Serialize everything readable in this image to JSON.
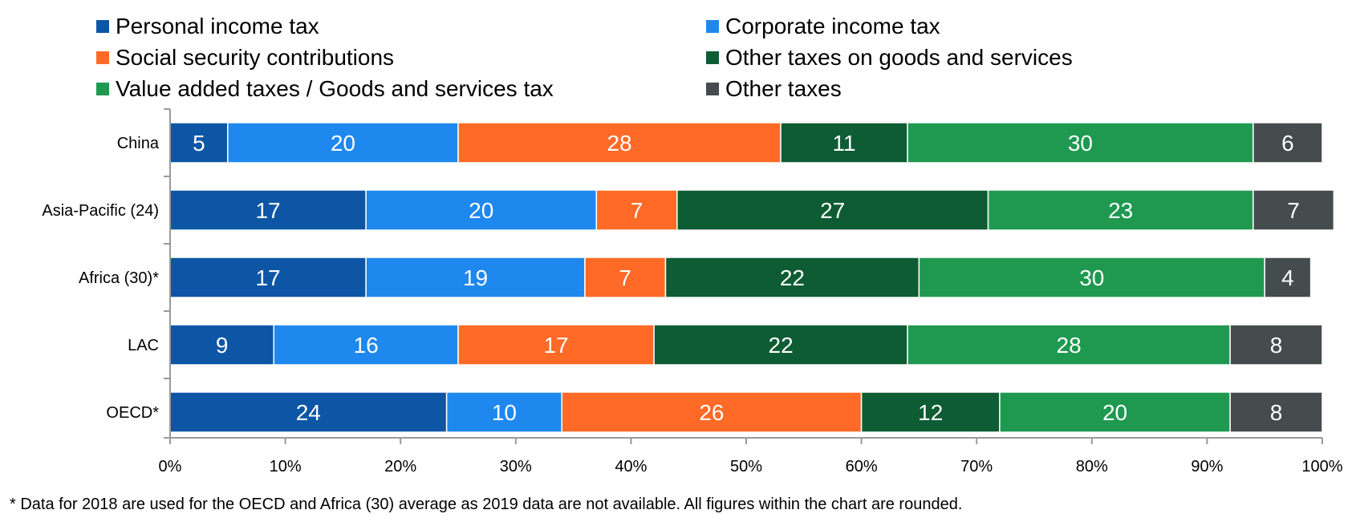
{
  "chart_data": {
    "type": "bar",
    "orientation": "horizontal",
    "stacked": true,
    "categories": [
      "China",
      "Asia-Pacific (24)",
      "Africa (30)*",
      "LAC",
      "OECD*"
    ],
    "series": [
      {
        "name": "Personal income tax",
        "color": "#0d56a6",
        "values": [
          5,
          17,
          17,
          9,
          24
        ]
      },
      {
        "name": "Corporate income tax",
        "color": "#1e88ee",
        "values": [
          20,
          20,
          19,
          16,
          10
        ]
      },
      {
        "name": "Social security contributions",
        "color": "#ff6a26",
        "values": [
          28,
          7,
          7,
          17,
          26
        ]
      },
      {
        "name": "Other taxes on goods and services",
        "color": "#0e5c34",
        "values": [
          11,
          27,
          22,
          22,
          12
        ]
      },
      {
        "name": "Value added taxes / Goods and services tax",
        "color": "#1f9950",
        "values": [
          30,
          23,
          30,
          28,
          20
        ]
      },
      {
        "name": "Other taxes",
        "color": "#454c4d",
        "values": [
          6,
          7,
          4,
          8,
          8
        ]
      }
    ],
    "x_ticks": [
      "0%",
      "10%",
      "20%",
      "30%",
      "40%",
      "50%",
      "60%",
      "70%",
      "80%",
      "90%",
      "100%"
    ],
    "xlim": [
      0,
      100
    ],
    "legend_position": "top",
    "grid": false
  },
  "footnote": "* Data for 2018 are used for the OECD and Africa (30) average as 2019 data are not available. All figures within the chart are rounded."
}
